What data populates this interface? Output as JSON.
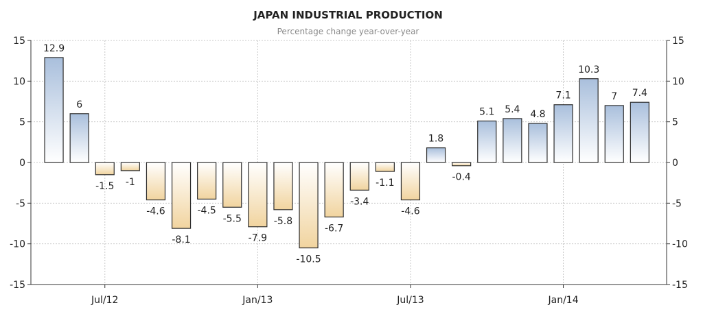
{
  "chart_data": {
    "type": "bar",
    "title": "JAPAN INDUSTRIAL PRODUCTION",
    "subtitle": "Percentage change year-over-year",
    "xlabel": "",
    "ylabel": "",
    "ylim": [
      -15,
      15
    ],
    "yticks": [
      "15",
      "10",
      "5",
      "0",
      "-5",
      "-10",
      "-15"
    ],
    "xticks": [
      "Jul/12",
      "Jan/13",
      "Jul/13",
      "Jan/14"
    ],
    "grid": true,
    "values": [
      12.9,
      6,
      -1.5,
      -1,
      -4.6,
      -8.1,
      -4.5,
      -5.5,
      -7.9,
      -5.8,
      -10.5,
      -6.7,
      -3.4,
      -1.1,
      -4.6,
      1.8,
      -0.4,
      5.1,
      5.4,
      4.8,
      7.1,
      10.3,
      7,
      7.4
    ],
    "labels": [
      "12.9",
      "6",
      "-1.5",
      "-1",
      "-4.6",
      "-8.1",
      "-4.5",
      "-5.5",
      "-7.9",
      "-5.8",
      "-10.5",
      "-6.7",
      "-3.4",
      "-1.1",
      "-4.6",
      "1.8",
      "-0.4",
      "5.1",
      "5.4",
      "4.8",
      "7.1",
      "10.3",
      "7",
      "7.4"
    ],
    "colors": {
      "positive_top": "#a9bfdc",
      "positive_bottom": "#ffffff",
      "negative_top": "#ffffff",
      "negative_bottom": "#f1d49f",
      "bar_stroke": "#2c2c2c",
      "grid": "#c8c8c8",
      "axis": "#333333"
    }
  }
}
